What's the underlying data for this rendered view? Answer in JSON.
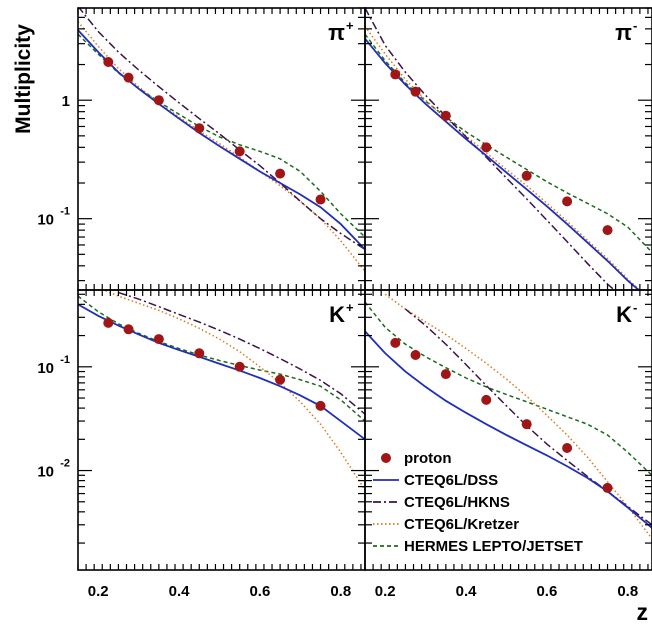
{
  "chart_data": {
    "type": "line",
    "x_label": "z",
    "y_label": "Multiplicity",
    "x_range": [
      0.15,
      0.86
    ],
    "x_ticks": [
      "0.2",
      "0.4",
      "0.6",
      "0.8"
    ],
    "x_tick_values": [
      0.2,
      0.4,
      0.6,
      0.8
    ],
    "grid": false,
    "legend": {
      "placement": "bottom-right",
      "entries": [
        {
          "key": "proton",
          "label": "proton",
          "style": "marker",
          "color": "#a01515"
        },
        {
          "key": "dss",
          "label": "CTEQ6L/DSS",
          "style": "solid",
          "color": "#1f2fb8"
        },
        {
          "key": "hkns",
          "label": "CTEQ6L/HKNS",
          "style": "dashdot",
          "color": "#3b1348"
        },
        {
          "key": "kretzer",
          "label": "CTEQ6L/Kretzer",
          "style": "dotted",
          "color": "#d97a1a"
        },
        {
          "key": "hermes",
          "label": "HERMES LEPTO/JETSET",
          "style": "dashed",
          "color": "#1d6b1d"
        }
      ]
    },
    "row_scales": [
      {
        "row": 0,
        "scale": "log",
        "y_range": [
          0.025,
          6.0
        ],
        "y_ticks": [
          {
            "value": 1,
            "label": "1"
          },
          {
            "value": 0.1,
            "label": "10",
            "exp": "-1"
          }
        ]
      },
      {
        "row": 1,
        "scale": "log",
        "y_range": [
          0.0011,
          0.55
        ],
        "y_ticks": [
          {
            "value": 0.1,
            "label": "10",
            "exp": "-1"
          },
          {
            "value": 0.01,
            "label": "10",
            "exp": "-2"
          }
        ]
      }
    ],
    "panels": [
      {
        "id": "pi-plus",
        "row": 0,
        "col": 0,
        "label": "π",
        "label_sup": "+",
        "points": {
          "x": [
            0.225,
            0.275,
            0.35,
            0.45,
            0.55,
            0.65,
            0.75
          ],
          "y": [
            2.1,
            1.55,
            1.0,
            0.58,
            0.37,
            0.24,
            0.145
          ]
        },
        "curves": {
          "dss": {
            "x": [
              0.15,
              0.2,
              0.25,
              0.3,
              0.35,
              0.4,
              0.45,
              0.5,
              0.55,
              0.6,
              0.65,
              0.7,
              0.75,
              0.8,
              0.86
            ],
            "y": [
              3.9,
              2.55,
              1.72,
              1.25,
              0.93,
              0.7,
              0.53,
              0.41,
              0.32,
              0.25,
              0.2,
              0.16,
              0.125,
              0.09,
              0.055
            ]
          },
          "hkns": {
            "x": [
              0.15,
              0.2,
              0.25,
              0.3,
              0.35,
              0.4,
              0.45,
              0.5,
              0.55,
              0.6,
              0.65,
              0.7,
              0.75,
              0.8,
              0.86
            ],
            "y": [
              6.2,
              3.8,
              2.55,
              1.8,
              1.3,
              0.95,
              0.7,
              0.52,
              0.38,
              0.28,
              0.2,
              0.14,
              0.1,
              0.075,
              0.055
            ]
          },
          "kretzer": {
            "x": [
              0.15,
              0.2,
              0.25,
              0.3,
              0.35,
              0.4,
              0.45,
              0.5,
              0.55,
              0.6,
              0.65,
              0.7,
              0.75,
              0.8,
              0.86
            ],
            "y": [
              4.6,
              2.85,
              1.85,
              1.3,
              0.95,
              0.72,
              0.55,
              0.43,
              0.33,
              0.25,
              0.19,
              0.14,
              0.1,
              0.065,
              0.036
            ]
          },
          "hermes": {
            "x": [
              0.15,
              0.2,
              0.25,
              0.3,
              0.35,
              0.4,
              0.45,
              0.5,
              0.55,
              0.6,
              0.65,
              0.7,
              0.75,
              0.8,
              0.86
            ],
            "y": [
              3.6,
              2.45,
              1.7,
              1.26,
              0.97,
              0.76,
              0.6,
              0.49,
              0.42,
              0.37,
              0.32,
              0.25,
              0.17,
              0.11,
              0.07
            ]
          }
        }
      },
      {
        "id": "pi-minus",
        "row": 0,
        "col": 1,
        "label": "π",
        "label_sup": "-",
        "points": {
          "x": [
            0.225,
            0.275,
            0.35,
            0.45,
            0.55,
            0.65,
            0.75
          ],
          "y": [
            1.65,
            1.18,
            0.74,
            0.4,
            0.23,
            0.14,
            0.08
          ]
        },
        "curves": {
          "dss": {
            "x": [
              0.15,
              0.2,
              0.25,
              0.3,
              0.35,
              0.4,
              0.45,
              0.5,
              0.55,
              0.6,
              0.65,
              0.7,
              0.75,
              0.8,
              0.86
            ],
            "y": [
              3.3,
              2.05,
              1.35,
              0.93,
              0.66,
              0.47,
              0.34,
              0.245,
              0.177,
              0.127,
              0.09,
              0.063,
              0.044,
              0.03,
              0.02
            ]
          },
          "hkns": {
            "x": [
              0.15,
              0.2,
              0.25,
              0.3,
              0.35,
              0.4,
              0.45,
              0.5,
              0.55,
              0.6,
              0.65,
              0.7,
              0.75,
              0.8,
              0.86
            ],
            "y": [
              6.0,
              2.9,
              1.72,
              1.1,
              0.73,
              0.49,
              0.33,
              0.22,
              0.147,
              0.097,
              0.064,
              0.042,
              0.028,
              0.02,
              0.016
            ]
          },
          "kretzer": {
            "x": [
              0.15,
              0.2,
              0.25,
              0.3,
              0.35,
              0.4,
              0.45,
              0.5,
              0.55,
              0.6,
              0.65,
              0.7,
              0.75,
              0.8,
              0.86
            ],
            "y": [
              4.2,
              2.45,
              1.5,
              1.0,
              0.7,
              0.5,
              0.36,
              0.26,
              0.19,
              0.135,
              0.095,
              0.066,
              0.046,
              0.031,
              0.02
            ]
          },
          "hermes": {
            "x": [
              0.15,
              0.2,
              0.25,
              0.3,
              0.35,
              0.4,
              0.45,
              0.5,
              0.55,
              0.6,
              0.65,
              0.7,
              0.75,
              0.8,
              0.86
            ],
            "y": [
              3.6,
              2.15,
              1.4,
              0.98,
              0.72,
              0.54,
              0.42,
              0.33,
              0.26,
              0.205,
              0.165,
              0.135,
              0.11,
              0.085,
              0.052
            ]
          }
        }
      },
      {
        "id": "k-plus",
        "row": 1,
        "col": 0,
        "label": "K",
        "label_sup": "+",
        "points": {
          "x": [
            0.225,
            0.275,
            0.35,
            0.45,
            0.55,
            0.65,
            0.75
          ],
          "y": [
            0.265,
            0.23,
            0.185,
            0.135,
            0.1,
            0.075,
            0.042
          ]
        },
        "curves": {
          "dss": {
            "x": [
              0.15,
              0.2,
              0.25,
              0.3,
              0.35,
              0.4,
              0.45,
              0.5,
              0.55,
              0.6,
              0.65,
              0.7,
              0.75,
              0.8,
              0.86
            ],
            "y": [
              0.4,
              0.31,
              0.25,
              0.205,
              0.17,
              0.145,
              0.125,
              0.107,
              0.092,
              0.078,
              0.065,
              0.053,
              0.042,
              0.03,
              0.02
            ]
          },
          "hkns": {
            "x": [
              0.25,
              0.3,
              0.35,
              0.4,
              0.45,
              0.5,
              0.55,
              0.6,
              0.65,
              0.7,
              0.75,
              0.8,
              0.86
            ],
            "y": [
              0.52,
              0.45,
              0.38,
              0.32,
              0.27,
              0.225,
              0.185,
              0.15,
              0.12,
              0.095,
              0.074,
              0.055,
              0.035
            ]
          },
          "kretzer": {
            "x": [
              0.2,
              0.25,
              0.3,
              0.35,
              0.4,
              0.45,
              0.5,
              0.55,
              0.6,
              0.65,
              0.7,
              0.75,
              0.8,
              0.86
            ],
            "y": [
              0.58,
              0.48,
              0.41,
              0.35,
              0.29,
              0.235,
              0.185,
              0.14,
              0.1,
              0.07,
              0.046,
              0.028,
              0.015,
              0.0065
            ]
          },
          "hermes": {
            "x": [
              0.15,
              0.2,
              0.25,
              0.3,
              0.35,
              0.4,
              0.45,
              0.5,
              0.55,
              0.6,
              0.65,
              0.7,
              0.75,
              0.8,
              0.86
            ],
            "y": [
              0.48,
              0.34,
              0.26,
              0.21,
              0.175,
              0.15,
              0.13,
              0.115,
              0.103,
              0.093,
              0.085,
              0.075,
              0.065,
              0.048,
              0.03
            ]
          }
        }
      },
      {
        "id": "k-minus",
        "row": 1,
        "col": 1,
        "label": "K",
        "label_sup": "-",
        "points": {
          "x": [
            0.225,
            0.275,
            0.35,
            0.45,
            0.55,
            0.65,
            0.75
          ],
          "y": [
            0.17,
            0.13,
            0.085,
            0.048,
            0.028,
            0.0165,
            0.0068
          ]
        },
        "curves": {
          "dss": {
            "x": [
              0.15,
              0.2,
              0.25,
              0.3,
              0.35,
              0.4,
              0.45,
              0.5,
              0.55,
              0.6,
              0.65,
              0.7,
              0.75,
              0.8,
              0.86
            ],
            "y": [
              0.22,
              0.135,
              0.09,
              0.064,
              0.047,
              0.036,
              0.028,
              0.022,
              0.0175,
              0.014,
              0.011,
              0.0085,
              0.0063,
              0.0044,
              0.0028
            ]
          },
          "hkns": {
            "x": [
              0.25,
              0.3,
              0.35,
              0.4,
              0.45,
              0.5,
              0.55,
              0.6,
              0.65,
              0.7,
              0.75,
              0.8,
              0.86
            ],
            "y": [
              0.36,
              0.25,
              0.165,
              0.105,
              0.066,
              0.042,
              0.027,
              0.018,
              0.0125,
              0.0088,
              0.0063,
              0.0045,
              0.003
            ]
          },
          "kretzer": {
            "x": [
              0.2,
              0.25,
              0.3,
              0.35,
              0.4,
              0.45,
              0.5,
              0.55,
              0.6,
              0.65,
              0.7,
              0.75,
              0.8,
              0.86
            ],
            "y": [
              0.5,
              0.36,
              0.27,
              0.205,
              0.15,
              0.108,
              0.076,
              0.052,
              0.034,
              0.022,
              0.0135,
              0.0078,
              0.0045,
              0.0022
            ]
          },
          "hermes": {
            "x": [
              0.15,
              0.2,
              0.25,
              0.3,
              0.35,
              0.4,
              0.45,
              0.5,
              0.55,
              0.6,
              0.65,
              0.7,
              0.75,
              0.8,
              0.86
            ],
            "y": [
              0.42,
              0.24,
              0.165,
              0.125,
              0.098,
              0.078,
              0.064,
              0.054,
              0.046,
              0.039,
              0.033,
              0.028,
              0.022,
              0.015,
              0.009
            ]
          }
        }
      }
    ]
  }
}
